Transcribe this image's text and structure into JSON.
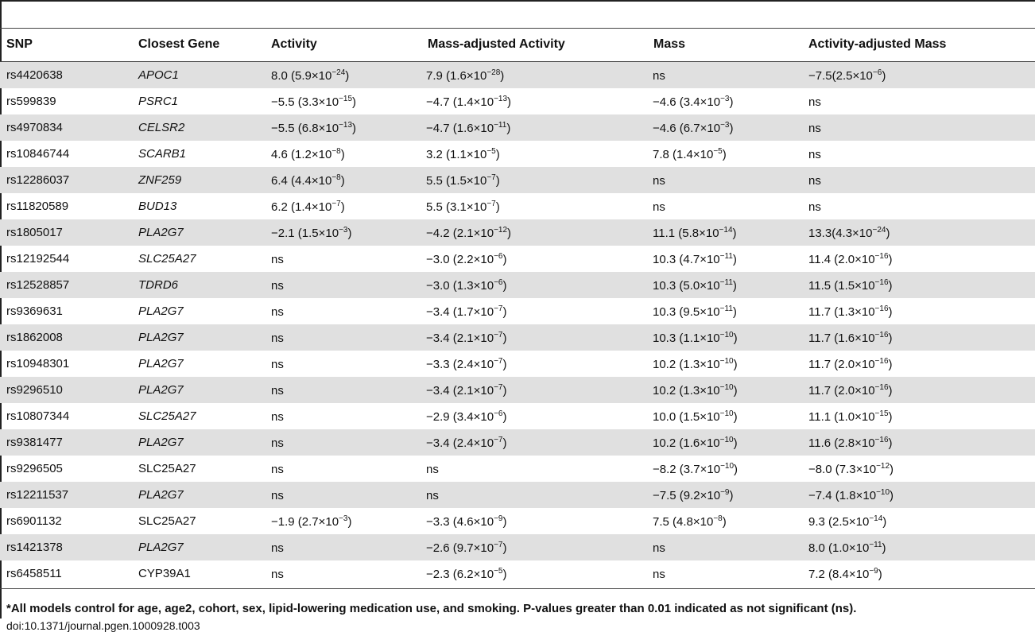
{
  "headers": [
    "SNP",
    "Closest Gene",
    "Activity",
    "Mass-adjusted Activity",
    "Mass",
    "Activity-adjusted Mass"
  ],
  "rows": [
    {
      "snp": "rs4420638",
      "gene": "APOC1",
      "italic": true,
      "act": "8.0 (5.9×10",
      "act_e": "−24",
      "mact": "7.9 (1.6×10",
      "mact_e": "−28",
      "mass": "ns",
      "mass_e": "",
      "amass": "−7.5(2.5×10",
      "amass_e": "−6"
    },
    {
      "snp": "rs599839",
      "gene": "PSRC1",
      "italic": true,
      "act": "−5.5 (3.3×10",
      "act_e": "−15",
      "mact": "−4.7 (1.4×10",
      "mact_e": "−13",
      "mass": "−4.6 (3.4×10",
      "mass_e": "−3",
      "amass": "ns",
      "amass_e": ""
    },
    {
      "snp": "rs4970834",
      "gene": "CELSR2",
      "italic": true,
      "act": "−5.5 (6.8×10",
      "act_e": "−13",
      "mact": "−4.7 (1.6×10",
      "mact_e": "−11",
      "mass": "−4.6 (6.7×10",
      "mass_e": "−3",
      "amass": "ns",
      "amass_e": ""
    },
    {
      "snp": "rs10846744",
      "gene": "SCARB1",
      "italic": true,
      "act": "4.6 (1.2×10",
      "act_e": "−8",
      "mact": "3.2 (1.1×10",
      "mact_e": "−5",
      "mass": "7.8 (1.4×10",
      "mass_e": "−5",
      "amass": "ns",
      "amass_e": ""
    },
    {
      "snp": "rs12286037",
      "gene": "ZNF259",
      "italic": true,
      "act": "6.4 (4.4×10",
      "act_e": "−8",
      "mact": "5.5 (1.5×10",
      "mact_e": "−7",
      "mass": "ns",
      "mass_e": "",
      "amass": "ns",
      "amass_e": ""
    },
    {
      "snp": "rs11820589",
      "gene": "BUD13",
      "italic": true,
      "act": "6.2 (1.4×10",
      "act_e": "−7",
      "mact": "5.5 (3.1×10",
      "mact_e": "−7",
      "mass": "ns",
      "mass_e": "",
      "amass": "ns",
      "amass_e": ""
    },
    {
      "snp": "rs1805017",
      "gene": "PLA2G7",
      "italic": true,
      "act": "−2.1 (1.5×10",
      "act_e": "−3",
      "mact": "−4.2 (2.1×10",
      "mact_e": "−12",
      "mass": "11.1 (5.8×10",
      "mass_e": "−14",
      "amass": "13.3(4.3×10",
      "amass_e": "−24"
    },
    {
      "snp": "rs12192544",
      "gene": "SLC25A27",
      "italic": true,
      "act": "ns",
      "act_e": "",
      "mact": "−3.0 (2.2×10",
      "mact_e": "−6",
      "mass": "10.3 (4.7×10",
      "mass_e": "−11",
      "amass": "11.4 (2.0×10",
      "amass_e": "−16"
    },
    {
      "snp": "rs12528857",
      "gene": "TDRD6",
      "italic": true,
      "act": "ns",
      "act_e": "",
      "mact": "−3.0 (1.3×10",
      "mact_e": "−6",
      "mass": "10.3 (5.0×10",
      "mass_e": "−11",
      "amass": "11.5 (1.5×10",
      "amass_e": "−16"
    },
    {
      "snp": "rs9369631",
      "gene": "PLA2G7",
      "italic": true,
      "act": "ns",
      "act_e": "",
      "mact": "−3.4 (1.7×10",
      "mact_e": "−7",
      "mass": "10.3 (9.5×10",
      "mass_e": "−11",
      "amass": "11.7 (1.3×10",
      "amass_e": "−16"
    },
    {
      "snp": "rs1862008",
      "gene": "PLA2G7",
      "italic": true,
      "act": "ns",
      "act_e": "",
      "mact": "−3.4 (2.1×10",
      "mact_e": "−7",
      "mass": "10.3 (1.1×10",
      "mass_e": "−10",
      "amass": "11.7 (1.6×10",
      "amass_e": "−16"
    },
    {
      "snp": "rs10948301",
      "gene": "PLA2G7",
      "italic": true,
      "act": "ns",
      "act_e": "",
      "mact": "−3.3 (2.4×10",
      "mact_e": "−7",
      "mass": "10.2 (1.3×10",
      "mass_e": "−10",
      "amass": "11.7 (2.0×10",
      "amass_e": "−16"
    },
    {
      "snp": "rs9296510",
      "gene": "PLA2G7",
      "italic": true,
      "act": "ns",
      "act_e": "",
      "mact": "−3.4 (2.1×10",
      "mact_e": "−7",
      "mass": "10.2 (1.3×10",
      "mass_e": "−10",
      "amass": "11.7 (2.0×10",
      "amass_e": "−16"
    },
    {
      "snp": "rs10807344",
      "gene": "SLC25A27",
      "italic": true,
      "act": "ns",
      "act_e": "",
      "mact": "−2.9 (3.4×10",
      "mact_e": "−6",
      "mass": "10.0 (1.5×10",
      "mass_e": "−10",
      "amass": "11.1 (1.0×10",
      "amass_e": "−15"
    },
    {
      "snp": "rs9381477",
      "gene": "PLA2G7",
      "italic": true,
      "act": "ns",
      "act_e": "",
      "mact": "−3.4 (2.4×10",
      "mact_e": "−7",
      "mass": "10.2 (1.6×10",
      "mass_e": "−10",
      "amass": "11.6 (2.8×10",
      "amass_e": "−16"
    },
    {
      "snp": "rs9296505",
      "gene": "SLC25A27",
      "italic": false,
      "act": "ns",
      "act_e": "",
      "mact": "ns",
      "mact_e": "",
      "mass": "−8.2 (3.7×10",
      "mass_e": "−10",
      "amass": "−8.0 (7.3×10",
      "amass_e": "−12"
    },
    {
      "snp": "rs12211537",
      "gene": "PLA2G7",
      "italic": true,
      "act": "ns",
      "act_e": "",
      "mact": "ns",
      "mact_e": "",
      "mass": "−7.5 (9.2×10",
      "mass_e": "−9",
      "amass": "−7.4 (1.8×10",
      "amass_e": "−10"
    },
    {
      "snp": "rs6901132",
      "gene": "SLC25A27",
      "italic": false,
      "act": "−1.9 (2.7×10",
      "act_e": "−3",
      "mact": "−3.3 (4.6×10",
      "mact_e": "−9",
      "mass": "7.5 (4.8×10",
      "mass_e": "−8",
      "amass": "9.3 (2.5×10",
      "amass_e": "−14"
    },
    {
      "snp": "rs1421378",
      "gene": "PLA2G7",
      "italic": true,
      "act": "ns",
      "act_e": "",
      "mact": "−2.6 (9.7×10",
      "mact_e": "−7",
      "mass": "ns",
      "mass_e": "",
      "amass": "8.0 (1.0×10",
      "amass_e": "−11"
    },
    {
      "snp": "rs6458511",
      "gene": "CYP39A1",
      "italic": false,
      "act": "ns",
      "act_e": "",
      "mact": "−2.3 (6.2×10",
      "mact_e": "−5",
      "mass": "ns",
      "mass_e": "",
      "amass": "7.2 (8.4×10",
      "amass_e": "−9"
    }
  ],
  "footnote": "*All models control for age, age2, cohort, sex, lipid-lowering medication use, and smoking. P-values greater than 0.01 indicated as not significant (ns).",
  "doi": "doi:10.1371/journal.pgen.1000928.t003"
}
